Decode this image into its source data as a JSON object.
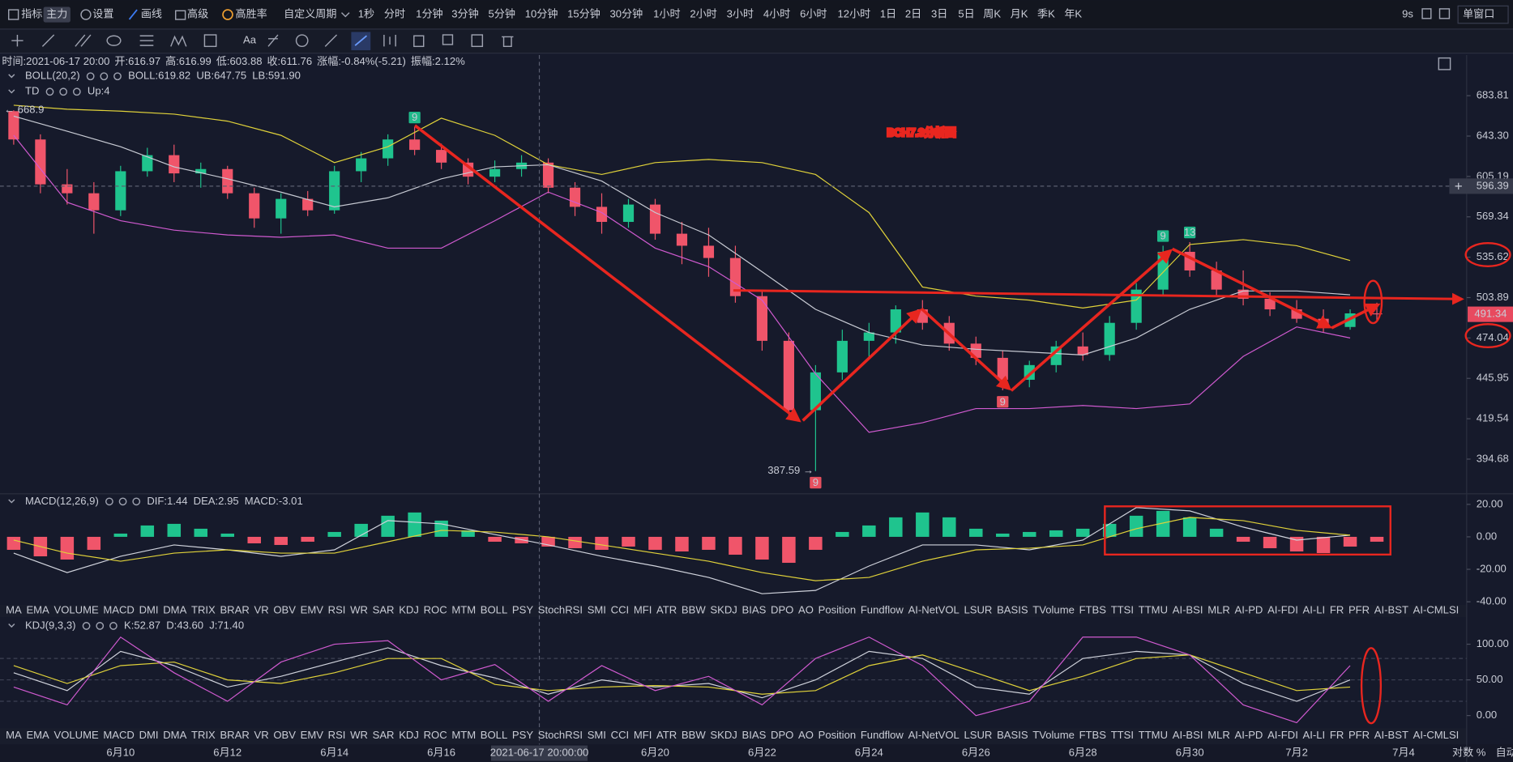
{
  "toolbar": {
    "items": [
      "指标",
      "主力",
      "设置",
      "画线",
      "高级",
      "高胜率",
      "自定义周期",
      "1秒",
      "分时",
      "1分钟",
      "3分钟",
      "5分钟",
      "10分钟",
      "15分钟",
      "30分钟",
      "1小时",
      "2小时",
      "3小时",
      "4小时",
      "6小时",
      "12小时",
      "1日",
      "2日",
      "3日",
      "5日",
      "周K",
      "月K",
      "季K",
      "年K"
    ],
    "active_index": 18,
    "refresh": "9s",
    "window": "单窗口"
  },
  "drawing_tools": {
    "text_tool": "Aa"
  },
  "info": [
    [
      "时间:",
      "2021-06-17 20:00"
    ],
    [
      "开:",
      "616.97"
    ],
    [
      "高:",
      "616.99"
    ],
    [
      "低:",
      "603.88"
    ],
    [
      "收:",
      "611.76"
    ],
    [
      "涨幅:",
      "-0.84%(-5.21)"
    ],
    [
      "振幅:",
      "2.12%"
    ]
  ],
  "indicator_tabs": [
    "MA",
    "EMA",
    "VOLUME",
    "MACD",
    "DMI",
    "DMA",
    "TRIX",
    "BRAR",
    "VR",
    "OBV",
    "EMV",
    "RSI",
    "WR",
    "SAR",
    "KDJ",
    "ROC",
    "MTM",
    "BOLL",
    "PSY",
    "StochRSI",
    "SMI",
    "CCI",
    "MFI",
    "ATR",
    "BBW",
    "SKDJ",
    "BIAS",
    "DPO",
    "AO",
    "Position",
    "Fundflow",
    "AI-NetVOL",
    "LSUR",
    "BASIS",
    "TVolume",
    "FTBS",
    "TTSI",
    "TTMU",
    "AI-BSI",
    "MLR",
    "AI-PD",
    "AI-FDI",
    "AI-LI",
    "FR",
    "PFR",
    "AI-BST",
    "AI-CMLSI"
  ],
  "axis_modes": [
    "对数",
    "%",
    "自动"
  ],
  "chart_data": [
    {
      "type": "candlestick",
      "title": "BCH7.3分析图",
      "legend": [
        {
          "text": "BOLL(20,2)",
          "color": "#9a9eab"
        },
        {
          "text": "BOLL:619.82",
          "color": "#d9dce3"
        },
        {
          "text": "UB:647.75",
          "color": "#e0d23a"
        },
        {
          "text": "LB:591.90",
          "color": "#d05ad0"
        }
      ],
      "td_legend": [
        {
          "text": "TD",
          "color": "#c9ccd6"
        },
        {
          "text": "Up:4",
          "color": "#1fc48e"
        }
      ],
      "up_color": "#1fc48e",
      "down_color": "#f0556a",
      "log_scale": true,
      "ylim": [
        375.6,
        727.1
      ],
      "yticks": [
        683.81,
        {
          "value": 643.3,
          "label": "643.30"
        },
        605.19,
        569.34,
        535.62,
        503.89,
        474.04,
        445.95,
        419.54,
        394.68
      ],
      "xlim": [
        7.744,
        35.18
      ],
      "xticks": [
        {
          "value": 10,
          "label": "6月10"
        },
        {
          "value": 12,
          "label": "6月12"
        },
        {
          "value": 14,
          "label": "6月14"
        },
        {
          "value": 16,
          "label": "6月16"
        },
        {
          "value": 20,
          "label": "6月20"
        },
        {
          "value": 22,
          "label": "6月22"
        },
        {
          "value": 24,
          "label": "6月24"
        },
        {
          "value": 26,
          "label": "6月26"
        },
        {
          "value": 28,
          "label": "6月28"
        },
        {
          "value": 30,
          "label": "6月30"
        },
        {
          "value": 32,
          "label": "7月2"
        },
        {
          "value": 34,
          "label": "7月4"
        }
      ],
      "x": [
        8,
        8.5,
        9,
        9.5,
        10,
        10.5,
        11,
        11.5,
        12,
        12.5,
        13,
        13.5,
        14,
        14.5,
        15,
        15.5,
        16,
        16.5,
        17,
        17.5,
        18,
        18.5,
        19,
        19.5,
        20,
        20.5,
        21,
        21.5,
        22,
        22.5,
        23,
        23.5,
        24,
        24.5,
        25,
        25.5,
        26,
        26.5,
        27,
        27.5,
        28,
        28.5,
        29,
        29.5,
        30,
        30.5,
        31,
        31.5,
        32,
        32.5,
        33,
        33.5
      ],
      "open": [
        668,
        640,
        598,
        590,
        575,
        610,
        625,
        608,
        612,
        590,
        568,
        585,
        575,
        610,
        622,
        640,
        630,
        618,
        605,
        612,
        618,
        595,
        578,
        565,
        580,
        555,
        545,
        535,
        505,
        472,
        425,
        450,
        472,
        478,
        495,
        485,
        470,
        460,
        445,
        455,
        468,
        462,
        485,
        510,
        540,
        525,
        510,
        503,
        495,
        488,
        482,
        492
      ],
      "high": [
        668.9,
        645,
        612,
        600,
        615,
        632,
        635,
        618,
        615,
        595,
        590,
        592,
        615,
        628,
        645,
        652,
        636,
        622,
        620,
        625,
        622,
        600,
        590,
        585,
        585,
        565,
        560,
        545,
        510,
        478,
        455,
        480,
        485,
        498,
        502,
        490,
        475,
        465,
        458,
        472,
        478,
        490,
        515,
        545,
        548,
        532,
        525,
        508,
        502,
        495,
        495,
        500
      ],
      "low": [
        635,
        590,
        580,
        555,
        570,
        605,
        600,
        595,
        585,
        560,
        555,
        570,
        572,
        600,
        615,
        625,
        612,
        598,
        600,
        605,
        590,
        570,
        555,
        560,
        550,
        530,
        520,
        500,
        465,
        420,
        387.59,
        445,
        460,
        470,
        480,
        465,
        455,
        438,
        440,
        450,
        458,
        458,
        480,
        505,
        520,
        505,
        498,
        490,
        485,
        478,
        480,
        486
      ],
      "close": [
        640,
        598,
        590,
        575,
        610,
        625,
        608,
        612,
        590,
        568,
        585,
        575,
        610,
        622,
        640,
        630,
        618,
        605,
        612,
        618,
        595,
        578,
        565,
        580,
        555,
        545,
        535,
        505,
        472,
        425,
        450,
        472,
        478,
        495,
        485,
        470,
        460,
        445,
        455,
        468,
        462,
        485,
        510,
        540,
        525,
        510,
        503,
        495,
        488,
        482,
        492,
        491.34
      ],
      "series": [
        {
          "color": "#e0d23a",
          "x": [
            8,
            9,
            10,
            11,
            12,
            13,
            14,
            15,
            16,
            17,
            18,
            19,
            20,
            21,
            22,
            23,
            24,
            25,
            26,
            27,
            28,
            29,
            30,
            31,
            32,
            33
          ],
          "values": [
            674,
            670,
            668,
            665,
            658,
            644,
            618,
            633,
            661,
            644,
            616,
            607,
            618,
            621,
            618,
            607,
            573,
            512,
            505,
            502,
            496,
            502,
            546,
            550,
            545,
            533
          ]
        },
        {
          "color": "#c8cbd4",
          "x": [
            8,
            9,
            10,
            11,
            12,
            13,
            14,
            15,
            16,
            17,
            18,
            19,
            20,
            21,
            22,
            23,
            24,
            25,
            26,
            27,
            28,
            29,
            30,
            31,
            32,
            33
          ],
          "values": [
            663,
            648,
            633,
            614,
            603,
            591,
            578,
            586,
            603,
            614,
            616,
            601,
            573,
            554,
            524,
            495,
            478,
            469,
            466,
            464,
            462,
            474,
            495,
            509,
            509,
            506
          ]
        },
        {
          "color": "#d05ad0",
          "x": [
            8,
            9,
            10,
            11,
            12,
            13,
            14,
            15,
            16,
            17,
            18,
            19,
            20,
            21,
            22,
            23,
            24,
            25,
            26,
            27,
            28,
            29,
            30,
            31,
            32,
            33
          ],
          "values": [
            644,
            582,
            566,
            558,
            554,
            552,
            554,
            543,
            543,
            566,
            591,
            573,
            543,
            528,
            502,
            449,
            411,
            417,
            426,
            426,
            428,
            426,
            429,
            461,
            482,
            474
          ]
        }
      ],
      "high_label": {
        "value": 668.9,
        "label": "← 668.9"
      },
      "low_label": {
        "value": 387.59,
        "label": "387.59 →"
      },
      "td_marks": [
        {
          "label": "9",
          "x": 15.5,
          "color": "#1fb98a"
        },
        {
          "label": "9",
          "x": 23,
          "color": "#e8505f"
        },
        {
          "label": "9",
          "x": 26.5,
          "color": "#e8505f"
        },
        {
          "label": "9",
          "x": 29.5,
          "color": "#1fb98a"
        },
        {
          "label": "13",
          "x": 30,
          "color": "#1fb98a"
        }
      ],
      "crosshair": {
        "value": 596.39,
        "x": 17.833,
        "x_label": "2021-06-17 20:00:00"
      },
      "last_price": 491.34
    },
    {
      "type": "bar",
      "legend": [
        {
          "text": "MACD(12,26,9)",
          "color": "#c9ccd6"
        },
        {
          "text": "DIF:1.44",
          "color": "#d9dce3"
        },
        {
          "text": "DEA:2.95",
          "color": "#e0d23a"
        },
        {
          "text": "MACD:-3.01",
          "color": "#f0556a"
        }
      ],
      "ylim": [
        -41.2,
        26.5
      ],
      "yticks": [
        {
          "value": 20,
          "label": "20.00"
        },
        {
          "value": 0,
          "label": "0.00"
        },
        {
          "value": -20,
          "label": "-20.00"
        },
        {
          "value": -40,
          "label": "-40.00"
        }
      ],
      "x": [
        8,
        8.5,
        9,
        9.5,
        10,
        10.5,
        11,
        11.5,
        12,
        12.5,
        13,
        13.5,
        14,
        14.5,
        15,
        15.5,
        16,
        16.5,
        17,
        17.5,
        18,
        18.5,
        19,
        19.5,
        20,
        20.5,
        21,
        21.5,
        22,
        22.5,
        23,
        23.5,
        24,
        24.5,
        25,
        25.5,
        26,
        26.5,
        27,
        27.5,
        28,
        28.5,
        29,
        29.5,
        30,
        30.5,
        31,
        31.5,
        32,
        32.5,
        33,
        33.5
      ],
      "values": [
        -8,
        -12,
        -14,
        -8,
        2,
        7,
        8,
        5,
        2,
        -4,
        -5,
        -3,
        3,
        8,
        13,
        15,
        10,
        4,
        -3.01,
        -4,
        -6,
        -7,
        -8,
        -6,
        -8,
        -9,
        -8,
        -11,
        -14,
        -16,
        -8,
        3,
        7,
        12,
        15,
        12,
        5,
        2,
        3,
        4,
        5,
        8,
        13,
        16,
        12,
        5,
        -3,
        -7,
        -9,
        -10,
        -6,
        -3
      ],
      "up_color": "#1fc48e",
      "down_color": "#f0556a",
      "series": [
        {
          "color": "#d0d3dc",
          "x": [
            8,
            9,
            10,
            11,
            12,
            13,
            14,
            15,
            16,
            17,
            18,
            19,
            20,
            21,
            22,
            23,
            24,
            25,
            26,
            27,
            28,
            29,
            30,
            31,
            32,
            33
          ],
          "values": [
            -10,
            -22,
            -12,
            -5,
            -8,
            -12,
            -8,
            10,
            8,
            1.44,
            -5,
            -12,
            -18,
            -25,
            -35,
            -33,
            -18,
            -5,
            -5,
            -8,
            -2,
            18,
            16,
            6,
            -2,
            1
          ]
        },
        {
          "color": "#e0d23a",
          "x": [
            8,
            9,
            10,
            11,
            12,
            13,
            14,
            15,
            16,
            17,
            18,
            19,
            20,
            21,
            22,
            23,
            24,
            25,
            26,
            27,
            28,
            29,
            30,
            31,
            32,
            33
          ],
          "values": [
            -2,
            -10,
            -15,
            -10,
            -8,
            -10,
            -10,
            -3,
            4,
            2.95,
            0,
            -5,
            -10,
            -15,
            -22,
            -27,
            -25,
            -15,
            -8,
            -7,
            -5,
            5,
            12,
            10,
            4,
            1
          ]
        }
      ],
      "tabs_active": 3,
      "tabs_muted": [
        14,
        31,
        38,
        40,
        41,
        42,
        45,
        46
      ]
    },
    {
      "type": "line",
      "legend": [
        {
          "text": "KDJ(9,3,3)",
          "color": "#c9ccd6"
        },
        {
          "text": "K:52.87",
          "color": "#d9dce3"
        },
        {
          "text": "D:43.60",
          "color": "#e0d23a"
        },
        {
          "text": "J:71.40",
          "color": "#d05ad0"
        }
      ],
      "ylim": [
        -17.6,
        137.8
      ],
      "yticks": [
        {
          "value": 100,
          "label": "100.00"
        },
        {
          "value": 50,
          "label": "50.00"
        },
        {
          "value": 0,
          "label": "0.00"
        }
      ],
      "hlines": [
        80,
        50,
        20
      ],
      "series": [
        {
          "color": "#d0d3dc",
          "x": [
            8,
            9,
            10,
            11,
            12,
            13,
            14,
            15,
            16,
            17,
            18,
            19,
            20,
            21,
            22,
            23,
            24,
            25,
            26,
            27,
            28,
            29,
            30,
            31,
            32,
            33
          ],
          "values": [
            60,
            35,
            90,
            70,
            40,
            55,
            75,
            95,
            70,
            52.87,
            30,
            50,
            40,
            45,
            25,
            50,
            90,
            80,
            40,
            30,
            80,
            90,
            85,
            45,
            20,
            50
          ]
        },
        {
          "color": "#e0d23a",
          "x": [
            8,
            9,
            10,
            11,
            12,
            13,
            14,
            15,
            16,
            17,
            18,
            19,
            20,
            21,
            22,
            23,
            24,
            25,
            26,
            27,
            28,
            29,
            30,
            31,
            32,
            33
          ],
          "values": [
            70,
            45,
            70,
            75,
            50,
            45,
            60,
            80,
            80,
            43.6,
            35,
            40,
            42,
            40,
            30,
            35,
            70,
            85,
            60,
            35,
            55,
            80,
            85,
            60,
            35,
            40
          ]
        },
        {
          "color": "#d05ad0",
          "x": [
            8,
            9,
            10,
            11,
            12,
            13,
            14,
            15,
            16,
            17,
            18,
            19,
            20,
            21,
            22,
            23,
            24,
            25,
            26,
            27,
            28,
            29,
            30,
            31,
            32,
            33
          ],
          "values": [
            40,
            15,
            110,
            60,
            20,
            75,
            100,
            105,
            50,
            71.4,
            20,
            70,
            35,
            55,
            15,
            80,
            110,
            70,
            0,
            20,
            110,
            110,
            85,
            15,
            -10,
            70
          ]
        }
      ],
      "tabs_active": 14,
      "tabs_muted": [
        3,
        31,
        38,
        40,
        41,
        42,
        45,
        46
      ]
    }
  ]
}
